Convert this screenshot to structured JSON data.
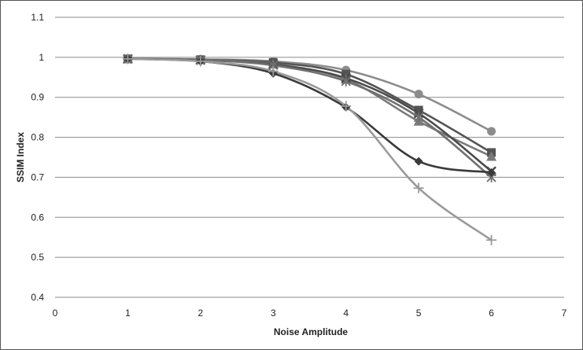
{
  "chart_data": {
    "type": "line",
    "xlabel": "Noise Amplitude",
    "ylabel": "SSIM Index",
    "xlim": [
      0,
      7
    ],
    "ylim": [
      0.4,
      1.1
    ],
    "x_ticks": [
      0,
      1,
      2,
      3,
      4,
      5,
      6,
      7
    ],
    "y_ticks": [
      0.4,
      0.5,
      0.6,
      0.7,
      0.8,
      0.9,
      1,
      1.1
    ],
    "grid": "horizontal",
    "smooth": true,
    "series": [
      {
        "marker": "circle",
        "color": "#8c8c8c",
        "x": [
          1,
          2,
          3,
          4,
          5,
          6
        ],
        "y": [
          0.996,
          0.995,
          0.99,
          0.968,
          0.908,
          0.815
        ]
      },
      {
        "marker": "square",
        "color": "#545454",
        "x": [
          1,
          2,
          3,
          4,
          5,
          6
        ],
        "y": [
          0.996,
          0.994,
          0.987,
          0.958,
          0.868,
          0.762
        ]
      },
      {
        "marker": "triangle",
        "color": "#7a7a7a",
        "x": [
          1,
          2,
          3,
          4,
          5,
          6
        ],
        "y": [
          0.996,
          0.994,
          0.983,
          0.945,
          0.84,
          0.752
        ]
      },
      {
        "marker": "x",
        "color": "#4a4a4a",
        "x": [
          1,
          2,
          3,
          4,
          5,
          6
        ],
        "y": [
          0.996,
          0.993,
          0.982,
          0.948,
          0.86,
          0.715
        ]
      },
      {
        "marker": "star",
        "color": "#707070",
        "x": [
          1,
          2,
          3,
          4,
          5,
          6
        ],
        "y": [
          0.996,
          0.993,
          0.98,
          0.94,
          0.85,
          0.7
        ]
      },
      {
        "marker": "diamond",
        "color": "#3a3a3a",
        "x": [
          1,
          2,
          3,
          4,
          5,
          6
        ],
        "y": [
          0.996,
          0.99,
          0.96,
          0.875,
          0.74,
          0.712
        ]
      },
      {
        "marker": "plus",
        "color": "#9a9a9a",
        "x": [
          1,
          2,
          3,
          4,
          5,
          6
        ],
        "y": [
          0.996,
          0.99,
          0.965,
          0.878,
          0.673,
          0.543
        ]
      }
    ]
  }
}
